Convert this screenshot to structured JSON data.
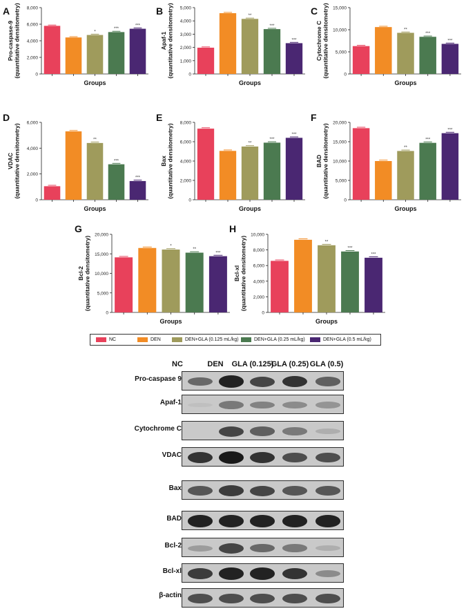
{
  "chart_data": [
    {
      "type": "bar",
      "letter": "A",
      "ylabel": "Pro-caspase-9\n(quantitative densitometry)",
      "xlabel": "Groups",
      "ylim": [
        0,
        8000
      ],
      "ticks": [
        "0",
        "2,000",
        "4,000",
        "6,000",
        "8,000"
      ],
      "values": [
        5800,
        4400,
        4700,
        5050,
        5450
      ],
      "marks": [
        "",
        "",
        "*",
        "***",
        "***"
      ]
    },
    {
      "type": "bar",
      "letter": "B",
      "ylabel": "Apaf-1\n(quantitative densitometry)",
      "xlabel": "Groups",
      "ylim": [
        0,
        5000
      ],
      "ticks": [
        "0",
        "1,000",
        "2,000",
        "3,000",
        "4,000",
        "5,000"
      ],
      "values": [
        1980,
        4580,
        4150,
        3380,
        2320
      ],
      "marks": [
        "",
        "",
        "**",
        "***",
        "***"
      ]
    },
    {
      "type": "bar",
      "letter": "C",
      "ylabel": "Cytochrome C\n(quantitative densitometry)",
      "xlabel": "Groups",
      "ylim": [
        0,
        15000
      ],
      "ticks": [
        "0",
        "5,000",
        "10,000",
        "15,000"
      ],
      "values": [
        6300,
        10600,
        9300,
        8400,
        6800
      ],
      "marks": [
        "",
        "",
        "**",
        "***",
        "***"
      ]
    },
    {
      "type": "bar",
      "letter": "D",
      "ylabel": "VDAC\n(quantitative densitometry)",
      "xlabel": "Groups",
      "ylim": [
        0,
        6000
      ],
      "ticks": [
        "0",
        "2,000",
        "4,000",
        "6,000"
      ],
      "values": [
        1050,
        5300,
        4400,
        2750,
        1450
      ],
      "marks": [
        "",
        "",
        "**",
        "***",
        "***"
      ]
    },
    {
      "type": "bar",
      "letter": "E",
      "ylabel": "Bax\n(quantitative densitometry)",
      "xlabel": "Groups",
      "ylim": [
        0,
        8000
      ],
      "ticks": [
        "0",
        "2,000",
        "4,000",
        "6,000",
        "8,000"
      ],
      "values": [
        7350,
        5050,
        5500,
        5900,
        6400
      ],
      "marks": [
        "",
        "",
        "**",
        "***",
        "***"
      ]
    },
    {
      "type": "bar",
      "letter": "F",
      "ylabel": "BAD\n(quantitative densitometry)",
      "xlabel": "Groups",
      "ylim": [
        0,
        20000
      ],
      "ticks": [
        "0",
        "5,000",
        "10,000",
        "15,000",
        "20,000"
      ],
      "values": [
        18500,
        10000,
        12600,
        14700,
        17200
      ],
      "marks": [
        "",
        "",
        "**",
        "***",
        "***"
      ]
    },
    {
      "type": "bar",
      "letter": "G",
      "ylabel": "Bcl-2\n(quantitative densitometry)",
      "xlabel": "Groups",
      "ylim": [
        0,
        20000
      ],
      "ticks": [
        "0",
        "5,000",
        "10,000",
        "15,000",
        "20,000"
      ],
      "values": [
        14100,
        16500,
        16100,
        15300,
        14400
      ],
      "marks": [
        "",
        "",
        "*",
        "**",
        "***"
      ]
    },
    {
      "type": "bar",
      "letter": "H",
      "ylabel": "Bcl-xl\n(quantitative densitometry)",
      "xlabel": "Groups",
      "ylim": [
        0,
        10000
      ],
      "ticks": [
        "0",
        "2,000",
        "4,000",
        "6,000",
        "8,000",
        "10,000"
      ],
      "values": [
        6600,
        9300,
        8600,
        7800,
        7000
      ],
      "marks": [
        "",
        "",
        "**",
        "***",
        "***"
      ]
    }
  ],
  "legend": [
    {
      "label": "NC",
      "color": "#e8415b"
    },
    {
      "label": "DEN",
      "color": "#f28c25"
    },
    {
      "label": "DEN+GLA (0.125 mL/kg)",
      "color": "#9f9b5c"
    },
    {
      "label": "DEN+GLA (0.25 mL/kg)",
      "color": "#4b7a50"
    },
    {
      "label": "DEN+GLA (0.5 mL/kg)",
      "color": "#4a2772"
    }
  ],
  "blot": {
    "columns": [
      "NC",
      "DEN",
      "GLA (0.125)",
      "GLA (0.25)",
      "GLA (0.5)"
    ],
    "rows": [
      {
        "label": "Pro-caspase 9",
        "intensity": [
          0.55,
          0.95,
          0.75,
          0.85,
          0.6
        ]
      },
      {
        "label": "Apaf-1",
        "intensity": [
          0.05,
          0.45,
          0.4,
          0.35,
          0.3
        ]
      },
      {
        "label": "Cytochrome C",
        "intensity": [
          0.0,
          0.75,
          0.6,
          0.45,
          0.15
        ]
      },
      {
        "label": "VDAC",
        "intensity": [
          0.85,
          1.0,
          0.85,
          0.7,
          0.7
        ]
      },
      {
        "label": "Bax",
        "intensity": [
          0.65,
          0.8,
          0.75,
          0.65,
          0.65
        ]
      },
      {
        "label": "BAD",
        "intensity": [
          0.95,
          0.95,
          0.95,
          0.95,
          0.95
        ]
      },
      {
        "label": "Bcl-2",
        "intensity": [
          0.25,
          0.75,
          0.55,
          0.45,
          0.15
        ]
      },
      {
        "label": "Bcl-xl",
        "intensity": [
          0.8,
          0.95,
          0.95,
          0.85,
          0.35
        ]
      },
      {
        "label": "β-actin",
        "intensity": [
          0.7,
          0.7,
          0.7,
          0.7,
          0.7
        ]
      }
    ]
  }
}
